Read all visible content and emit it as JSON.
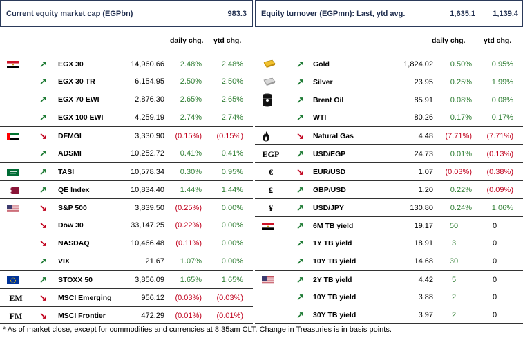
{
  "left": {
    "title": "Current equity market cap (EGPbn)",
    "title_value": "983.3",
    "col_daily": "daily chg.",
    "col_ytd": "ytd chg.",
    "rows": [
      {
        "icon": "flag-egypt-icon",
        "dir": "up",
        "name": "EGX 30",
        "value": "14,960.66",
        "daily": "2.48%",
        "daily_neg": false,
        "ytd": "2.48%",
        "ytd_neg": false
      },
      {
        "icon": "",
        "dir": "up",
        "name": "EGX 30 TR",
        "value": "6,154.95",
        "daily": "2.50%",
        "daily_neg": false,
        "ytd": "2.50%",
        "ytd_neg": false
      },
      {
        "icon": "",
        "dir": "up",
        "name": "EGX 70 EWI",
        "value": "2,876.30",
        "daily": "2.65%",
        "daily_neg": false,
        "ytd": "2.65%",
        "ytd_neg": false
      },
      {
        "icon": "",
        "dir": "up",
        "name": "EGX 100 EWI",
        "value": "4,259.19",
        "daily": "2.74%",
        "daily_neg": false,
        "ytd": "2.74%",
        "ytd_neg": false
      },
      {
        "icon": "flag-uae-icon",
        "dir": "down",
        "name": "DFMGI",
        "value": "3,330.90",
        "daily": "(0.15%)",
        "daily_neg": true,
        "ytd": "(0.15%)",
        "ytd_neg": true
      },
      {
        "icon": "",
        "dir": "up",
        "name": "ADSMI",
        "value": "10,252.72",
        "daily": "0.41%",
        "daily_neg": false,
        "ytd": "0.41%",
        "ytd_neg": false
      },
      {
        "icon": "flag-saudi-icon",
        "dir": "up",
        "name": "TASI",
        "value": "10,578.34",
        "daily": "0.30%",
        "daily_neg": false,
        "ytd": "0.95%",
        "ytd_neg": false
      },
      {
        "icon": "flag-qatar-icon",
        "dir": "up",
        "name": "QE Index",
        "value": "10,834.40",
        "daily": "1.44%",
        "daily_neg": false,
        "ytd": "1.44%",
        "ytd_neg": false
      },
      {
        "icon": "flag-usa-icon",
        "dir": "down",
        "name": "S&P 500",
        "value": "3,839.50",
        "daily": "(0.25%)",
        "daily_neg": true,
        "ytd": "0.00%",
        "ytd_neg": false
      },
      {
        "icon": "",
        "dir": "down",
        "name": "Dow 30",
        "value": "33,147.25",
        "daily": "(0.22%)",
        "daily_neg": true,
        "ytd": "0.00%",
        "ytd_neg": false
      },
      {
        "icon": "",
        "dir": "down",
        "name": "NASDAQ",
        "value": "10,466.48",
        "daily": "(0.11%)",
        "daily_neg": true,
        "ytd": "0.00%",
        "ytd_neg": false
      },
      {
        "icon": "",
        "dir": "up",
        "name": "VIX",
        "value": "21.67",
        "daily": "1.07%",
        "daily_neg": false,
        "ytd": "0.00%",
        "ytd_neg": false
      },
      {
        "icon": "flag-eu-icon",
        "dir": "up",
        "name": "STOXX 50",
        "value": "3,856.09",
        "daily": "1.65%",
        "daily_neg": false,
        "ytd": "1.65%",
        "ytd_neg": false
      },
      {
        "icon": "em-icon",
        "icon_text": "EM",
        "dir": "down",
        "name": "MSCI Emerging",
        "value": "956.12",
        "daily": "(0.03%)",
        "daily_neg": true,
        "ytd": "(0.03%)",
        "ytd_neg": true
      },
      {
        "icon": "fm-icon",
        "icon_text": "FM",
        "dir": "down",
        "name": "MSCI Frontier",
        "value": "472.29",
        "daily": "(0.01%)",
        "daily_neg": true,
        "ytd": "(0.01%)",
        "ytd_neg": true
      }
    ]
  },
  "right": {
    "title": "Equity turnover (EGPmn): Last, ytd avg.",
    "title_last": "1,635.1",
    "title_avg": "1,139.4",
    "col_daily": "daily chg.",
    "col_ytd": "ytd chg.",
    "rows": [
      {
        "icon": "gold-bar-icon",
        "dir": "up",
        "name": "Gold",
        "value": "1,824.02",
        "daily": "0.50%",
        "daily_neg": false,
        "ytd": "0.95%",
        "ytd_neg": false
      },
      {
        "icon": "silver-bar-icon",
        "dir": "up",
        "name": "Silver",
        "value": "23.95",
        "daily": "0.25%",
        "daily_neg": false,
        "ytd": "1.99%",
        "ytd_neg": false
      },
      {
        "icon": "oil-barrel-icon",
        "dir": "up",
        "name": "Brent Oil",
        "value": "85.91",
        "daily": "0.08%",
        "daily_neg": false,
        "ytd": "0.08%",
        "ytd_neg": false
      },
      {
        "icon": "",
        "dir": "up",
        "name": "WTI",
        "value": "80.26",
        "daily": "0.17%",
        "daily_neg": false,
        "ytd": "0.17%",
        "ytd_neg": false
      },
      {
        "icon": "flame-icon",
        "dir": "down",
        "name": "Natural Gas",
        "value": "4.48",
        "daily": "(7.71%)",
        "daily_neg": true,
        "ytd": "(7.71%)",
        "ytd_neg": true
      },
      {
        "icon": "egp-icon",
        "icon_text": "EGP",
        "dir": "up",
        "name": "USD/EGP",
        "value": "24.73",
        "daily": "0.01%",
        "daily_neg": false,
        "ytd": "(0.13%)",
        "ytd_neg": true
      },
      {
        "icon": "euro-icon",
        "icon_text": "€",
        "dir": "down",
        "name": "EUR/USD",
        "value": "1.07",
        "daily": "(0.03%)",
        "daily_neg": true,
        "ytd": "(0.38%)",
        "ytd_neg": true
      },
      {
        "icon": "pound-icon",
        "icon_text": "£",
        "dir": "up",
        "name": "GBP/USD",
        "value": "1.20",
        "daily": "0.22%",
        "daily_neg": false,
        "ytd": "(0.09%)",
        "ytd_neg": true
      },
      {
        "icon": "yen-icon",
        "icon_text": "¥",
        "dir": "up",
        "name": "USD/JPY",
        "value": "130.80",
        "daily": "0.24%",
        "daily_neg": false,
        "ytd": "1.06%",
        "ytd_neg": false
      },
      {
        "icon": "flag-egypt-icon",
        "dir": "up",
        "name": "6M TB yield",
        "value": "19.17",
        "daily": "50",
        "daily_neg": false,
        "ytd": "0",
        "ytd_neg": false,
        "bp": true
      },
      {
        "icon": "",
        "dir": "up",
        "name": "1Y TB yield",
        "value": "18.91",
        "daily": "3",
        "daily_neg": false,
        "ytd": "0",
        "ytd_neg": false,
        "bp": true
      },
      {
        "icon": "",
        "dir": "up",
        "name": "10Y TB yield",
        "value": "14.68",
        "daily": "30",
        "daily_neg": false,
        "ytd": "0",
        "ytd_neg": false,
        "bp": true
      },
      {
        "icon": "flag-usa-icon",
        "dir": "up",
        "name": "2Y TB yield",
        "value": "4.42",
        "daily": "5",
        "daily_neg": false,
        "ytd": "0",
        "ytd_neg": false,
        "bp": true
      },
      {
        "icon": "",
        "dir": "up",
        "name": "10Y TB yield",
        "value": "3.88",
        "daily": "2",
        "daily_neg": false,
        "ytd": "0",
        "ytd_neg": false,
        "bp": true
      },
      {
        "icon": "",
        "dir": "up",
        "name": "30Y TB yield",
        "value": "3.97",
        "daily": "2",
        "daily_neg": false,
        "ytd": "0",
        "ytd_neg": false,
        "bp": true
      }
    ]
  },
  "footnote": "* As of market close, except for commodities and currencies at 8.35am CLT. Change in Treasuries is in basis points."
}
